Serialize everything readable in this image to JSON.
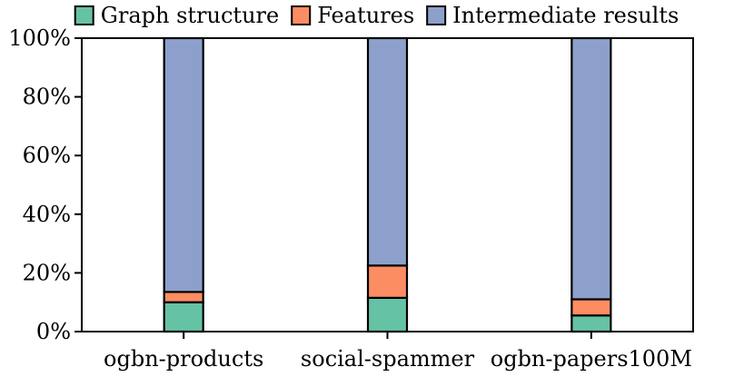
{
  "chart_data": {
    "type": "bar",
    "stacked": true,
    "normalized": true,
    "categories": [
      "ogbn-products",
      "social-spammer",
      "ogbn-papers100M"
    ],
    "series": [
      {
        "name": "Graph structure",
        "color": "#66c2a5",
        "values": [
          10,
          11.5,
          5.5
        ]
      },
      {
        "name": "Features",
        "color": "#fc8d62",
        "values": [
          3.5,
          11,
          5.5
        ]
      },
      {
        "name": "Intermediate results",
        "color": "#8da0cb",
        "values": [
          86.5,
          77.5,
          89
        ]
      }
    ],
    "y_ticks": [
      "0%",
      "20%",
      "40%",
      "60%",
      "80%",
      "100%"
    ],
    "ylim": [
      0,
      100
    ],
    "xlabel": "",
    "ylabel": "",
    "title": "",
    "legend": {
      "position": "top",
      "entries": [
        "Graph structure",
        "Features",
        "Intermediate results"
      ]
    },
    "grid": false
  }
}
